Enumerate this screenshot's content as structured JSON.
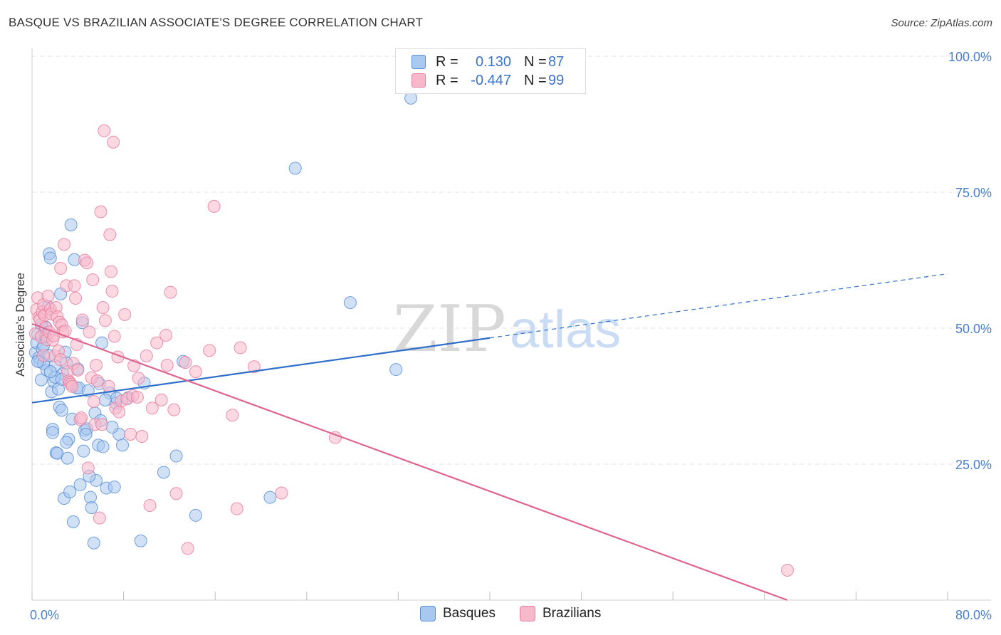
{
  "header": {
    "title": "BASQUE VS BRAZILIAN ASSOCIATE'S DEGREE CORRELATION CHART",
    "source": "Source: ZipAtlas.com"
  },
  "watermark": {
    "zip": "ZIP",
    "atlas": "atlas"
  },
  "legend": {
    "rows": [
      {
        "r_label": "R =",
        "r_value": "0.130",
        "n_label": "N =",
        "n_value": "87"
      },
      {
        "r_label": "R =",
        "r_value": "-0.447",
        "n_label": "N =",
        "n_value": "99"
      }
    ]
  },
  "bottom_legend": {
    "basques": "Basques",
    "brazilians": "Brazilians"
  },
  "colors": {
    "basques_fill": "#a9c8ef",
    "basques_stroke": "#5b8fd8",
    "basques_line": "#2f6ecb",
    "brazilians_fill": "#f7b8cb",
    "brazilians_stroke": "#e87fa0",
    "brazilians_line": "#e0648f",
    "grid": "#e3e3e3",
    "axis_label": "#4a7fd0"
  },
  "chart_data": {
    "type": "scatter",
    "title": "BASQUE VS BRAZILIAN ASSOCIATE'S DEGREE CORRELATION CHART",
    "xlabel": "",
    "ylabel": "Associate's Degree",
    "xlim": [
      0,
      80
    ],
    "ylim": [
      0,
      100
    ],
    "x_tick_labels": [
      "0.0%",
      "80.0%"
    ],
    "y_tick_labels": [
      "25.0%",
      "50.0%",
      "75.0%",
      "100.0%"
    ],
    "y_ticks": [
      25,
      50,
      75,
      100
    ],
    "x_ticks_minor": [
      0,
      8,
      16,
      24,
      32,
      40,
      48,
      56,
      64,
      72,
      80
    ],
    "series": [
      {
        "name": "Basques",
        "r": 0.13,
        "n": 87,
        "trend": {
          "x0": 0,
          "y0": 36.3,
          "x1": 40,
          "y1": 48.2,
          "dash_to_x": 80,
          "dash_to_y": 60.0
        },
        "points": [
          [
            0.3,
            45.5
          ],
          [
            0.4,
            47.3
          ],
          [
            0.5,
            48.9
          ],
          [
            0.6,
            44.6
          ],
          [
            0.7,
            43.8
          ],
          [
            0.8,
            40.5
          ],
          [
            0.9,
            46.2
          ],
          [
            1.0,
            46.8
          ],
          [
            1.1,
            49.3
          ],
          [
            1.2,
            50.2
          ],
          [
            1.3,
            42.3
          ],
          [
            1.4,
            54.0
          ],
          [
            1.5,
            63.7
          ],
          [
            1.6,
            62.9
          ],
          [
            1.7,
            38.3
          ],
          [
            1.8,
            31.4
          ],
          [
            1.8,
            30.8
          ],
          [
            1.9,
            40.2
          ],
          [
            2.0,
            43.1
          ],
          [
            2.1,
            27.1
          ],
          [
            2.2,
            27.0
          ],
          [
            2.4,
            35.5
          ],
          [
            2.5,
            56.3
          ],
          [
            2.6,
            34.9
          ],
          [
            2.7,
            41.6
          ],
          [
            2.8,
            18.7
          ],
          [
            2.9,
            45.6
          ],
          [
            3.0,
            43.6
          ],
          [
            3.1,
            26.1
          ],
          [
            3.2,
            29.6
          ],
          [
            3.3,
            19.9
          ],
          [
            3.4,
            69.0
          ],
          [
            3.6,
            14.4
          ],
          [
            3.7,
            62.6
          ],
          [
            3.9,
            39.0
          ],
          [
            4.1,
            39.0
          ],
          [
            4.2,
            21.2
          ],
          [
            4.4,
            51.0
          ],
          [
            4.5,
            27.4
          ],
          [
            4.6,
            31.2
          ],
          [
            4.8,
            31.5
          ],
          [
            4.9,
            38.5
          ],
          [
            5.1,
            18.9
          ],
          [
            5.2,
            17.0
          ],
          [
            5.4,
            10.5
          ],
          [
            5.5,
            34.4
          ],
          [
            5.6,
            22.0
          ],
          [
            5.8,
            28.5
          ],
          [
            5.9,
            39.8
          ],
          [
            6.0,
            33.0
          ],
          [
            6.1,
            47.3
          ],
          [
            6.2,
            28.2
          ],
          [
            6.5,
            20.6
          ],
          [
            6.8,
            38.1
          ],
          [
            7.2,
            20.8
          ],
          [
            7.3,
            36.2
          ],
          [
            7.4,
            37.1
          ],
          [
            7.6,
            30.5
          ],
          [
            7.9,
            28.5
          ],
          [
            8.4,
            37.2
          ],
          [
            9.5,
            10.9
          ],
          [
            9.8,
            39.9
          ],
          [
            11.5,
            23.5
          ],
          [
            12.6,
            26.5
          ],
          [
            13.2,
            43.9
          ],
          [
            14.3,
            15.6
          ],
          [
            20.8,
            18.9
          ],
          [
            23.0,
            79.4
          ],
          [
            27.8,
            54.7
          ],
          [
            31.8,
            42.4
          ],
          [
            33.1,
            92.3
          ],
          [
            1.0,
            43.5
          ],
          [
            1.5,
            45.0
          ],
          [
            2.0,
            41.0
          ],
          [
            2.3,
            38.8
          ],
          [
            3.0,
            29.0
          ],
          [
            4.0,
            42.5
          ],
          [
            4.7,
            30.5
          ],
          [
            5.0,
            22.8
          ],
          [
            6.4,
            36.8
          ],
          [
            7.0,
            31.8
          ],
          [
            0.5,
            43.9
          ],
          [
            0.8,
            50.7
          ],
          [
            1.2,
            48.5
          ],
          [
            1.6,
            42.0
          ],
          [
            2.6,
            40.6
          ],
          [
            3.5,
            33.3
          ]
        ]
      },
      {
        "name": "Brazilians",
        "r": -0.447,
        "n": 99,
        "trend": {
          "x0": 0,
          "y0": 50.8,
          "x1": 66,
          "y1": 0.0
        },
        "points": [
          [
            0.3,
            49.0
          ],
          [
            0.4,
            53.4
          ],
          [
            0.5,
            55.6
          ],
          [
            0.6,
            52.0
          ],
          [
            0.7,
            51.6
          ],
          [
            0.8,
            48.4
          ],
          [
            0.9,
            53.0
          ],
          [
            1.0,
            54.3
          ],
          [
            1.1,
            52.4
          ],
          [
            1.2,
            50.1
          ],
          [
            1.3,
            47.9
          ],
          [
            1.4,
            55.9
          ],
          [
            1.5,
            49.3
          ],
          [
            1.6,
            53.5
          ],
          [
            1.7,
            52.6
          ],
          [
            1.8,
            47.8
          ],
          [
            1.9,
            48.6
          ],
          [
            2.0,
            44.9
          ],
          [
            2.1,
            53.8
          ],
          [
            2.2,
            52.1
          ],
          [
            2.3,
            45.8
          ],
          [
            2.4,
            51.1
          ],
          [
            2.5,
            44.2
          ],
          [
            2.6,
            50.6
          ],
          [
            2.7,
            49.3
          ],
          [
            2.8,
            65.4
          ],
          [
            2.9,
            49.5
          ],
          [
            3.0,
            57.8
          ],
          [
            3.1,
            42.0
          ],
          [
            3.2,
            40.3
          ],
          [
            3.3,
            40.0
          ],
          [
            3.4,
            39.7
          ],
          [
            3.5,
            39.3
          ],
          [
            3.6,
            43.5
          ],
          [
            3.7,
            57.8
          ],
          [
            3.8,
            55.5
          ],
          [
            3.9,
            47.0
          ],
          [
            4.0,
            42.3
          ],
          [
            4.2,
            33.2
          ],
          [
            4.4,
            51.5
          ],
          [
            4.6,
            62.5
          ],
          [
            4.8,
            62.0
          ],
          [
            4.9,
            24.3
          ],
          [
            5.0,
            49.3
          ],
          [
            5.2,
            40.9
          ],
          [
            5.4,
            36.5
          ],
          [
            5.5,
            32.3
          ],
          [
            5.6,
            43.2
          ],
          [
            5.7,
            40.3
          ],
          [
            5.9,
            15.1
          ],
          [
            6.1,
            32.3
          ],
          [
            6.2,
            53.8
          ],
          [
            6.3,
            86.3
          ],
          [
            6.4,
            51.4
          ],
          [
            6.7,
            39.3
          ],
          [
            6.8,
            67.2
          ],
          [
            6.9,
            60.4
          ],
          [
            7.0,
            56.8
          ],
          [
            7.1,
            84.2
          ],
          [
            7.2,
            48.5
          ],
          [
            7.3,
            35.3
          ],
          [
            7.5,
            44.7
          ],
          [
            7.8,
            36.6
          ],
          [
            8.1,
            52.5
          ],
          [
            8.3,
            37.0
          ],
          [
            8.6,
            30.5
          ],
          [
            8.8,
            37.6
          ],
          [
            8.9,
            43.1
          ],
          [
            9.2,
            37.3
          ],
          [
            9.3,
            40.8
          ],
          [
            9.6,
            30.1
          ],
          [
            10.0,
            44.9
          ],
          [
            10.3,
            17.4
          ],
          [
            10.5,
            35.3
          ],
          [
            10.9,
            47.3
          ],
          [
            11.3,
            36.8
          ],
          [
            11.7,
            48.7
          ],
          [
            12.1,
            56.6
          ],
          [
            12.4,
            35.0
          ],
          [
            12.6,
            19.6
          ],
          [
            13.4,
            43.7
          ],
          [
            13.6,
            9.5
          ],
          [
            14.3,
            42.0
          ],
          [
            15.5,
            45.9
          ],
          [
            15.9,
            72.4
          ],
          [
            17.5,
            34.0
          ],
          [
            17.9,
            16.8
          ],
          [
            18.2,
            46.4
          ],
          [
            19.4,
            42.9
          ],
          [
            21.8,
            19.7
          ],
          [
            26.5,
            29.9
          ],
          [
            66.0,
            5.5
          ],
          [
            6.0,
            71.4
          ],
          [
            5.3,
            58.9
          ],
          [
            4.3,
            33.5
          ],
          [
            2.5,
            61.0
          ],
          [
            1.0,
            45.0
          ],
          [
            11.8,
            43.2
          ],
          [
            7.6,
            34.6
          ]
        ]
      }
    ]
  }
}
